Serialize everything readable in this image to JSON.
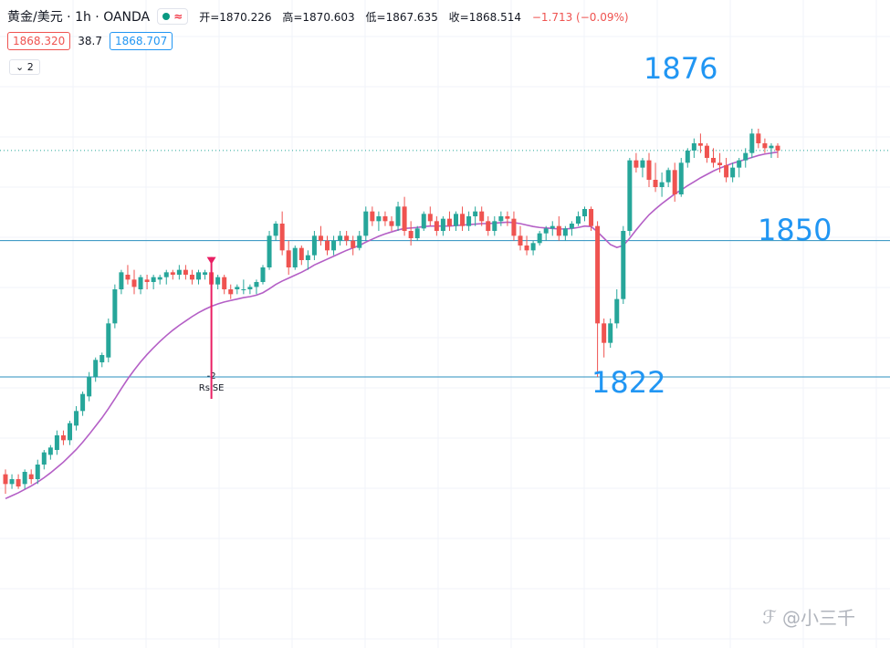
{
  "header": {
    "symbol": "黄金/美元 · 1h · OANDA",
    "status_dot_color": "#089981",
    "wave_icon": "≈",
    "open": "开=1870.226",
    "high": "高=1870.603",
    "low": "低=1867.635",
    "close": "收=1868.514",
    "change": "−1.713 (−0.09%)"
  },
  "price_boxes": {
    "bid": "1868.320",
    "spread": "38.7",
    "ask": "1868.707"
  },
  "indicator_toggle": "2",
  "watermark": "@小三千",
  "colors": {
    "up": "#26a69a",
    "down": "#ef5350",
    "ma": "#b45fc6",
    "level_line": "#2a8fbf",
    "level_text": "#2196f3",
    "signal": "#e91e63"
  },
  "chart_data": {
    "type": "candlestick",
    "title": "黄金/美元 · 1h · OANDA",
    "ylim": [
      1800,
      1884
    ],
    "grid": true,
    "levels": [
      1876,
      1850,
      1822
    ],
    "level_labels": [
      "1876",
      "1850",
      "1822"
    ],
    "last_price": 1868.514,
    "signal": {
      "label": "RsiSE",
      "value": "-2",
      "candle_index": 32
    },
    "candles": [
      [
        1802,
        1803,
        1798,
        1800
      ],
      [
        1800,
        1802,
        1799,
        1801
      ],
      [
        1801,
        1802,
        1799,
        1799.5
      ],
      [
        1800,
        1803,
        1799,
        1802.5
      ],
      [
        1802,
        1803,
        1800,
        1801
      ],
      [
        1801,
        1805,
        1800,
        1804
      ],
      [
        1804,
        1807,
        1803,
        1806.5
      ],
      [
        1806,
        1808,
        1805,
        1807.5
      ],
      [
        1807,
        1811,
        1806,
        1810
      ],
      [
        1810,
        1811,
        1808,
        1809
      ],
      [
        1809,
        1813,
        1808,
        1812.5
      ],
      [
        1812,
        1816,
        1811,
        1815
      ],
      [
        1815,
        1819,
        1814,
        1818.5
      ],
      [
        1818,
        1823,
        1817,
        1822
      ],
      [
        1822,
        1826,
        1821,
        1825.5
      ],
      [
        1825,
        1827,
        1824,
        1826.5
      ],
      [
        1826,
        1834,
        1825,
        1833
      ],
      [
        1833,
        1841,
        1832,
        1840
      ],
      [
        1840,
        1844,
        1839,
        1843.5
      ],
      [
        1843,
        1845,
        1841,
        1842
      ],
      [
        1842,
        1844,
        1839,
        1840.5
      ],
      [
        1840,
        1843,
        1839,
        1842.5
      ],
      [
        1842,
        1843,
        1840,
        1841.5
      ],
      [
        1841.5,
        1843,
        1840,
        1842.5
      ],
      [
        1842,
        1843,
        1841,
        1842.5
      ],
      [
        1842.5,
        1844,
        1841,
        1843.5
      ],
      [
        1843.5,
        1844,
        1842,
        1843
      ],
      [
        1843,
        1845,
        1842,
        1844
      ],
      [
        1844,
        1845,
        1842,
        1843
      ],
      [
        1843,
        1844,
        1841,
        1842
      ],
      [
        1842,
        1844,
        1841,
        1843.5
      ],
      [
        1843,
        1844,
        1842,
        1843.5
      ],
      [
        1843.5,
        1844,
        1840,
        1841
      ],
      [
        1841,
        1843,
        1840,
        1842.5
      ],
      [
        1842.5,
        1843,
        1839,
        1840
      ],
      [
        1840,
        1841,
        1838,
        1839
      ],
      [
        1840,
        1841,
        1839,
        1840.5
      ],
      [
        1840,
        1842,
        1839,
        1840
      ],
      [
        1840,
        1841,
        1839,
        1840.5
      ],
      [
        1840.5,
        1842,
        1839,
        1841.5
      ],
      [
        1841.5,
        1845,
        1841,
        1844.5
      ],
      [
        1844.5,
        1852,
        1844,
        1851
      ],
      [
        1851,
        1854,
        1850,
        1853.5
      ],
      [
        1853.5,
        1856,
        1847,
        1848
      ],
      [
        1848,
        1850,
        1843,
        1844.5
      ],
      [
        1844.5,
        1849,
        1844,
        1848.5
      ],
      [
        1848.5,
        1849,
        1845,
        1846
      ],
      [
        1846,
        1848,
        1844,
        1847
      ],
      [
        1847,
        1852,
        1846,
        1851
      ],
      [
        1851,
        1853,
        1849,
        1850
      ],
      [
        1850,
        1851,
        1847,
        1848
      ],
      [
        1848,
        1851,
        1847,
        1850
      ],
      [
        1850,
        1852,
        1849,
        1851
      ],
      [
        1851,
        1852,
        1849,
        1850
      ],
      [
        1850,
        1851,
        1847,
        1848.5
      ],
      [
        1848.5,
        1852,
        1848,
        1851
      ],
      [
        1851,
        1857,
        1850,
        1856
      ],
      [
        1856,
        1857,
        1853,
        1854
      ],
      [
        1854,
        1856,
        1852,
        1855
      ],
      [
        1855,
        1856,
        1853,
        1854
      ],
      [
        1854,
        1855,
        1852,
        1853
      ],
      [
        1853,
        1858,
        1852,
        1857
      ],
      [
        1857,
        1859,
        1851,
        1852
      ],
      [
        1852,
        1854,
        1849,
        1850.5
      ],
      [
        1850.5,
        1853,
        1850,
        1852.5
      ],
      [
        1852.5,
        1856,
        1852,
        1855.5
      ],
      [
        1855.5,
        1857,
        1853,
        1854
      ],
      [
        1854,
        1855,
        1851,
        1852
      ],
      [
        1852,
        1855,
        1851,
        1854.5
      ],
      [
        1854.5,
        1856,
        1852,
        1853
      ],
      [
        1853,
        1856,
        1852,
        1855.5
      ],
      [
        1855.5,
        1857,
        1852,
        1853
      ],
      [
        1853,
        1856,
        1852,
        1855
      ],
      [
        1855,
        1857,
        1853,
        1856
      ],
      [
        1856,
        1857,
        1853,
        1854
      ],
      [
        1854,
        1855,
        1851,
        1852
      ],
      [
        1852,
        1855,
        1851,
        1854
      ],
      [
        1854,
        1856,
        1853,
        1855
      ],
      [
        1855,
        1856,
        1853,
        1854.5
      ],
      [
        1854.5,
        1856,
        1850,
        1851
      ],
      [
        1851,
        1853,
        1848,
        1849
      ],
      [
        1849,
        1851,
        1847,
        1848
      ],
      [
        1848,
        1850,
        1847,
        1849.5
      ],
      [
        1849.5,
        1852,
        1849,
        1851.5
      ],
      [
        1851.5,
        1853,
        1850,
        1852.5
      ],
      [
        1852.5,
        1854,
        1851,
        1853
      ],
      [
        1853,
        1855,
        1850,
        1851
      ],
      [
        1851,
        1853,
        1850,
        1852.5
      ],
      [
        1852.5,
        1854,
        1851,
        1853.5
      ],
      [
        1853.5,
        1856,
        1853,
        1855
      ],
      [
        1855,
        1857,
        1854,
        1856.5
      ],
      [
        1856.5,
        1857,
        1852,
        1853
      ],
      [
        1853,
        1854,
        1822,
        1833
      ],
      [
        1833,
        1834,
        1826,
        1829
      ],
      [
        1829,
        1834,
        1828,
        1833
      ],
      [
        1833,
        1840,
        1832,
        1838
      ],
      [
        1838,
        1853,
        1837,
        1852
      ],
      [
        1852,
        1867,
        1851,
        1866.5
      ],
      [
        1866.5,
        1868,
        1864,
        1865
      ],
      [
        1865,
        1867,
        1863,
        1866.5
      ],
      [
        1866.5,
        1868,
        1861,
        1862.5
      ],
      [
        1862.5,
        1866,
        1860,
        1861
      ],
      [
        1861,
        1864,
        1859,
        1862
      ],
      [
        1862,
        1865,
        1861,
        1864.5
      ],
      [
        1864.5,
        1866,
        1858,
        1859.5
      ],
      [
        1859.5,
        1867,
        1859,
        1866
      ],
      [
        1866,
        1869,
        1865,
        1868.5
      ],
      [
        1868.5,
        1871,
        1867,
        1870
      ],
      [
        1870,
        1872,
        1868,
        1869.5
      ],
      [
        1869.5,
        1870,
        1866,
        1867
      ],
      [
        1867,
        1869,
        1865,
        1866
      ],
      [
        1866,
        1868,
        1864,
        1865.5
      ],
      [
        1865.5,
        1867,
        1862,
        1863
      ],
      [
        1863,
        1866,
        1862,
        1865
      ],
      [
        1865,
        1867,
        1863,
        1866.5
      ],
      [
        1866.5,
        1869,
        1865,
        1868
      ],
      [
        1868,
        1873,
        1867,
        1872
      ],
      [
        1872,
        1873,
        1869,
        1870
      ],
      [
        1870,
        1871,
        1868,
        1869
      ],
      [
        1869,
        1870,
        1867,
        1869.5
      ],
      [
        1869.5,
        1870,
        1867,
        1868.5
      ]
    ],
    "ma_series": [
      1797,
      1797.6,
      1798.2,
      1798.9,
      1799.6,
      1800.4,
      1801.3,
      1802.3,
      1803.4,
      1804.5,
      1805.8,
      1807.1,
      1808.6,
      1810.2,
      1811.9,
      1813.6,
      1815.5,
      1817.5,
      1819.6,
      1821.6,
      1823.4,
      1825.1,
      1826.6,
      1828,
      1829.3,
      1830.5,
      1831.6,
      1832.6,
      1833.5,
      1834.4,
      1835.2,
      1835.9,
      1836.5,
      1837,
      1837.4,
      1837.7,
      1838,
      1838.3,
      1838.5,
      1838.8,
      1839.3,
      1840.1,
      1841,
      1841.7,
      1842.3,
      1842.9,
      1843.5,
      1844.2,
      1845,
      1845.6,
      1846.2,
      1846.8,
      1847.4,
      1848,
      1848.5,
      1849,
      1849.7,
      1850.3,
      1850.9,
      1851.4,
      1851.8,
      1852.2,
      1852.5,
      1852.6,
      1852.7,
      1852.9,
      1853,
      1853,
      1853,
      1853,
      1853.1,
      1853.2,
      1853.3,
      1853.4,
      1853.5,
      1853.5,
      1853.6,
      1853.7,
      1853.8,
      1853.7,
      1853.5,
      1853.2,
      1852.9,
      1852.7,
      1852.6,
      1852.5,
      1852.4,
      1852.4,
      1852.5,
      1852.7,
      1853,
      1852.9,
      1851.8,
      1850.5,
      1849.2,
      1848.6,
      1849,
      1850.5,
      1852.2,
      1853.8,
      1855.3,
      1856.5,
      1857.6,
      1858.6,
      1859.6,
      1860.4,
      1861.3,
      1862.1,
      1862.9,
      1863.6,
      1864.3,
      1864.9,
      1865.4,
      1865.9,
      1866.3,
      1866.7,
      1867.1,
      1867.5,
      1867.8,
      1868,
      1868.2
    ]
  }
}
